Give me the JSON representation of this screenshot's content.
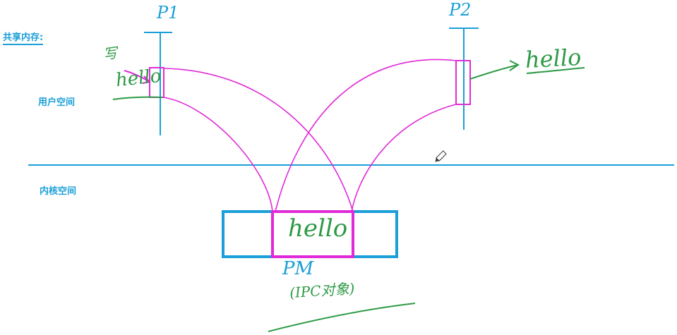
{
  "labels": {
    "shared_memory": "共享内存:",
    "user_space": "用户空间",
    "kernel_space": "内核空间"
  },
  "process_1": {
    "title": "P1",
    "write_label": "写",
    "buffer_text": "hello"
  },
  "process_2": {
    "title": "P2",
    "buffer_text": "hello"
  },
  "shared_memory_block": {
    "text": "hello"
  },
  "physical_memory": {
    "title": "PM",
    "subtitle": "(IPC对象)"
  },
  "colors": {
    "boundary_blue": "#1a9fd8",
    "mapping_magenta": "#e02ad8",
    "handwriting_green": "#2e9a46",
    "annotation_blue": "#1a9fd8"
  },
  "icons": {
    "cursor": "pencil-icon"
  }
}
